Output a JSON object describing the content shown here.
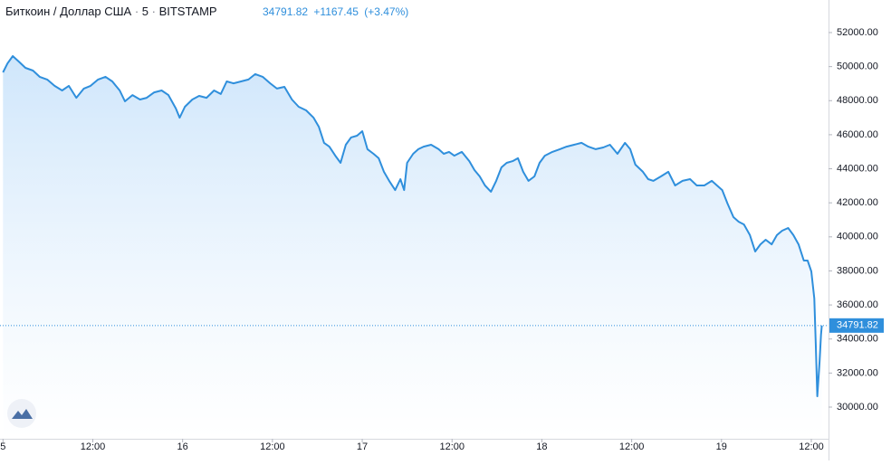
{
  "chart_data": {
    "type": "area",
    "symbol": "Биткоин / Доллар США",
    "interval": "5",
    "exchange": "BITSTAMP",
    "last_price": 34791.82,
    "change_label": "+1167.45",
    "change_pct_label": "(+3.47%)",
    "color": "#2f8fdc",
    "x": [
      0,
      0.6,
      1.3,
      2.1,
      3.0,
      4.0,
      4.9,
      5.9,
      6.9,
      7.9,
      8.8,
      9.8,
      10.8,
      11.7,
      12.7,
      13.7,
      14.6,
      15.6,
      16.3,
      17.3,
      18.3,
      19.2,
      20.2,
      21.2,
      22.1,
      23.1,
      23.6,
      24.3,
      25.3,
      26.2,
      27.2,
      28.2,
      29.1,
      29.9,
      30.8,
      31.8,
      32.8,
      33.7,
      34.7,
      35.7,
      36.6,
      37.6,
      38.6,
      39.5,
      40.5,
      41.5,
      42.2,
      42.9,
      43.6,
      44.4,
      45.1,
      45.8,
      46.5,
      47.3,
      48.0,
      48.7,
      49.5,
      50.2,
      50.9,
      51.6,
      52.4,
      53.1,
      53.6,
      54.0,
      54.8,
      55.5,
      56.2,
      57.2,
      58.2,
      58.9,
      59.6,
      60.3,
      61.3,
      62.3,
      63.0,
      63.7,
      64.4,
      65.2,
      65.9,
      66.6,
      67.3,
      68.1,
      68.8,
      69.5,
      70.2,
      71.0,
      71.7,
      72.4,
      73.4,
      74.4,
      75.3,
      76.3,
      77.3,
      78.2,
      79.2,
      80.2,
      81.1,
      82.1,
      83.1,
      83.8,
      84.5,
      85.5,
      86.2,
      86.9,
      87.9,
      88.9,
      89.8,
      90.8,
      91.8,
      92.7,
      93.7,
      94.7,
      95.4,
      96.1,
      96.8,
      97.6,
      98.3,
      99.0,
      99.8,
      100.5,
      101.2,
      101.9,
      102.7,
      103.4,
      104.1,
      104.9,
      105.6,
      106.3,
      107.0,
      107.5,
      108.0,
      108.4,
      108.6,
      108.8,
      109.1,
      109.3,
      109.4
    ],
    "values": [
      49660,
      50190,
      50620,
      50300,
      49930,
      49770,
      49400,
      49240,
      48870,
      48600,
      48870,
      48170,
      48710,
      48870,
      49240,
      49400,
      49130,
      48600,
      47960,
      48330,
      48070,
      48170,
      48490,
      48600,
      48330,
      47540,
      47000,
      47640,
      48070,
      48280,
      48170,
      48600,
      48390,
      49130,
      49020,
      49130,
      49240,
      49560,
      49400,
      49020,
      48710,
      48810,
      48070,
      47640,
      47430,
      47000,
      46470,
      45520,
      45300,
      44770,
      44350,
      45410,
      45840,
      45940,
      46210,
      45150,
      44880,
      44620,
      43820,
      43290,
      42750,
      43390,
      42750,
      44350,
      44880,
      45150,
      45300,
      45410,
      45150,
      44880,
      44990,
      44770,
      44990,
      44450,
      43920,
      43550,
      43020,
      42650,
      43290,
      44080,
      44350,
      44450,
      44620,
      43820,
      43290,
      43550,
      44350,
      44770,
      44990,
      45150,
      45300,
      45410,
      45520,
      45300,
      45150,
      45250,
      45410,
      44880,
      45520,
      45150,
      44240,
      43820,
      43390,
      43290,
      43550,
      43820,
      43020,
      43290,
      43390,
      43020,
      43020,
      43290,
      43020,
      42750,
      41960,
      41160,
      40890,
      40730,
      40100,
      39140,
      39560,
      39830,
      39560,
      40100,
      40360,
      40520,
      40100,
      39560,
      38610,
      38610,
      37970,
      36380,
      33720,
      30640,
      32660,
      34250,
      34791.82
    ],
    "xlim": [
      -0.4,
      110.3
    ],
    "xticks": [
      {
        "value": 0,
        "label": "5"
      },
      {
        "value": 12,
        "label": "12:00"
      },
      {
        "value": 24,
        "label": "16"
      },
      {
        "value": 36,
        "label": "12:00"
      },
      {
        "value": 48,
        "label": "17"
      },
      {
        "value": 60,
        "label": "12:00"
      },
      {
        "value": 72,
        "label": "18"
      },
      {
        "value": 84,
        "label": "12:00"
      },
      {
        "value": 96,
        "label": "19"
      },
      {
        "value": 108,
        "label": "12:00"
      }
    ],
    "ylim": [
      28140,
      53913
    ],
    "yticks": [
      {
        "value": 30000,
        "label": "30000.00"
      },
      {
        "value": 32000,
        "label": "32000.00"
      },
      {
        "value": 34000,
        "label": "34000.00"
      },
      {
        "value": 36000,
        "label": "36000.00"
      },
      {
        "value": 38000,
        "label": "38000.00"
      },
      {
        "value": 40000,
        "label": "40000.00"
      },
      {
        "value": 42000,
        "label": "42000.00"
      },
      {
        "value": 44000,
        "label": "44000.00"
      },
      {
        "value": 46000,
        "label": "46000.00"
      },
      {
        "value": 48000,
        "label": "48000.00"
      },
      {
        "value": 50000,
        "label": "50000.00"
      },
      {
        "value": 52000,
        "label": "52000.00"
      }
    ]
  }
}
